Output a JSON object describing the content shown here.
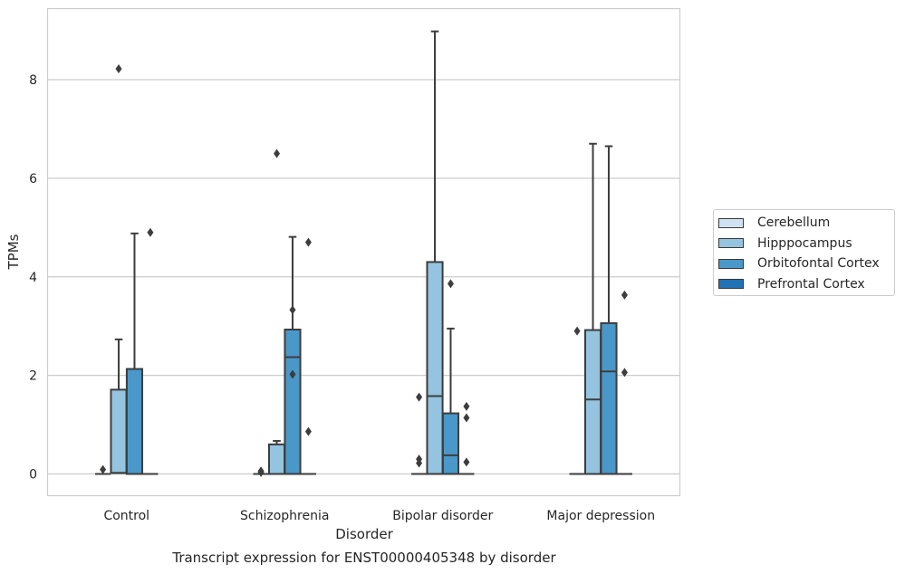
{
  "chart_data": {
    "type": "box",
    "title": "Transcript expression for ENST00000405348 by disorder",
    "xlabel": "Disorder",
    "ylabel": "TPMs",
    "ylim": [
      -0.45,
      9.4
    ],
    "yticks": [
      0,
      2,
      4,
      6,
      8
    ],
    "grid": "horizontal",
    "legend_position": "right",
    "categories": [
      "Control",
      "Schizophrenia",
      "Bipolar disorder",
      "Major depression"
    ],
    "series": [
      {
        "name": "Cerebellum",
        "color": "#d0e1f2",
        "boxes": [
          {
            "min": 0,
            "q1": 0,
            "median": 0,
            "q3": 0,
            "max": 0,
            "outliers": [
              0.09
            ]
          },
          {
            "min": 0,
            "q1": 0,
            "median": 0,
            "q3": 0,
            "max": 0,
            "outliers": [
              0.03,
              0.06
            ]
          },
          {
            "min": 0,
            "q1": 0,
            "median": 0,
            "q3": 0,
            "max": 0,
            "outliers": [
              0.22,
              0.3,
              1.56
            ]
          },
          {
            "min": 0,
            "q1": 0,
            "median": 0,
            "q3": 0,
            "max": 0,
            "outliers": [
              2.9
            ]
          }
        ]
      },
      {
        "name": "Hipppocampus",
        "color": "#94c4df",
        "boxes": [
          {
            "min": 0,
            "q1": 0.02,
            "median": 0.02,
            "q3": 1.71,
            "max": 2.73,
            "outliers": [
              8.22
            ]
          },
          {
            "min": 0,
            "q1": 0,
            "median": 0,
            "q3": 0.6,
            "max": 0.67,
            "outliers": [
              6.5
            ]
          },
          {
            "min": 0,
            "q1": 0,
            "median": 1.58,
            "q3": 4.3,
            "max": 8.98,
            "outliers": []
          },
          {
            "min": 0,
            "q1": 0,
            "median": 1.51,
            "q3": 2.92,
            "max": 6.7,
            "outliers": []
          }
        ]
      },
      {
        "name": "Orbitofontal Cortex",
        "color": "#4a98c9",
        "boxes": [
          {
            "min": 0,
            "q1": 0,
            "median": 0,
            "q3": 2.13,
            "max": 4.88,
            "outliers": []
          },
          {
            "min": 0,
            "q1": 0,
            "median": 2.37,
            "q3": 2.93,
            "max": 4.81,
            "outliers": [
              2.02,
              3.33
            ]
          },
          {
            "min": 0,
            "q1": 0,
            "median": 0.38,
            "q3": 1.23,
            "max": 2.95,
            "outliers": [
              3.86
            ]
          },
          {
            "min": 0,
            "q1": 0,
            "median": 2.08,
            "q3": 3.06,
            "max": 6.65,
            "outliers": []
          }
        ]
      },
      {
        "name": "Prefrontal Cortex",
        "color": "#2171b5",
        "boxes": [
          {
            "min": 0,
            "q1": 0,
            "median": 0,
            "q3": 0,
            "max": 0,
            "outliers": [
              4.9
            ]
          },
          {
            "min": 0,
            "q1": 0,
            "median": 0,
            "q3": 0,
            "max": 0,
            "outliers": [
              0.86,
              4.7
            ]
          },
          {
            "min": 0,
            "q1": 0,
            "median": 0,
            "q3": 0,
            "max": 0,
            "outliers": [
              0.24,
              1.14,
              1.37
            ]
          },
          {
            "min": 0,
            "q1": 0,
            "median": 0,
            "q3": 0,
            "max": 0,
            "outliers": [
              2.06,
              3.63
            ]
          }
        ]
      }
    ]
  }
}
